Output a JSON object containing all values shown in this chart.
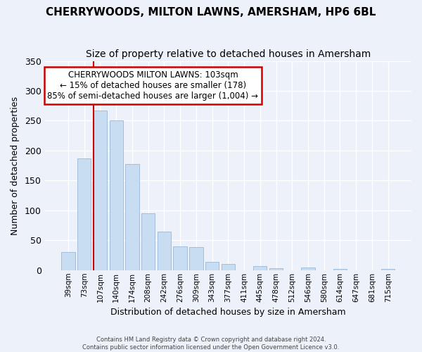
{
  "title": "CHERRYWOODS, MILTON LAWNS, AMERSHAM, HP6 6BL",
  "subtitle": "Size of property relative to detached houses in Amersham",
  "xlabel": "Distribution of detached houses by size in Amersham",
  "ylabel": "Number of detached properties",
  "bar_labels": [
    "39sqm",
    "73sqm",
    "107sqm",
    "140sqm",
    "174sqm",
    "208sqm",
    "242sqm",
    "276sqm",
    "309sqm",
    "343sqm",
    "377sqm",
    "411sqm",
    "445sqm",
    "478sqm",
    "512sqm",
    "546sqm",
    "580sqm",
    "614sqm",
    "647sqm",
    "681sqm",
    "715sqm"
  ],
  "bar_values": [
    30,
    187,
    267,
    251,
    178,
    95,
    65,
    40,
    39,
    14,
    10,
    0,
    7,
    3,
    0,
    5,
    0,
    2,
    0,
    0,
    2
  ],
  "bar_color": "#c9ddf2",
  "bar_edge_color": "#9ab8d8",
  "vline_x": 2,
  "vline_color": "#cc0000",
  "ylim": [
    0,
    350
  ],
  "yticks": [
    0,
    50,
    100,
    150,
    200,
    250,
    300,
    350
  ],
  "annotation_title": "CHERRYWOODS MILTON LAWNS: 103sqm",
  "annotation_line1": "← 15% of detached houses are smaller (178)",
  "annotation_line2": "85% of semi-detached houses are larger (1,004) →",
  "annotation_box_color": "#ffffff",
  "annotation_box_edge": "#cc0000",
  "footer_line1": "Contains HM Land Registry data © Crown copyright and database right 2024.",
  "footer_line2": "Contains public sector information licensed under the Open Government Licence v3.0.",
  "bg_color": "#edf2fa",
  "grid_color": "#ffffff",
  "title_fontsize": 11,
  "subtitle_fontsize": 10
}
